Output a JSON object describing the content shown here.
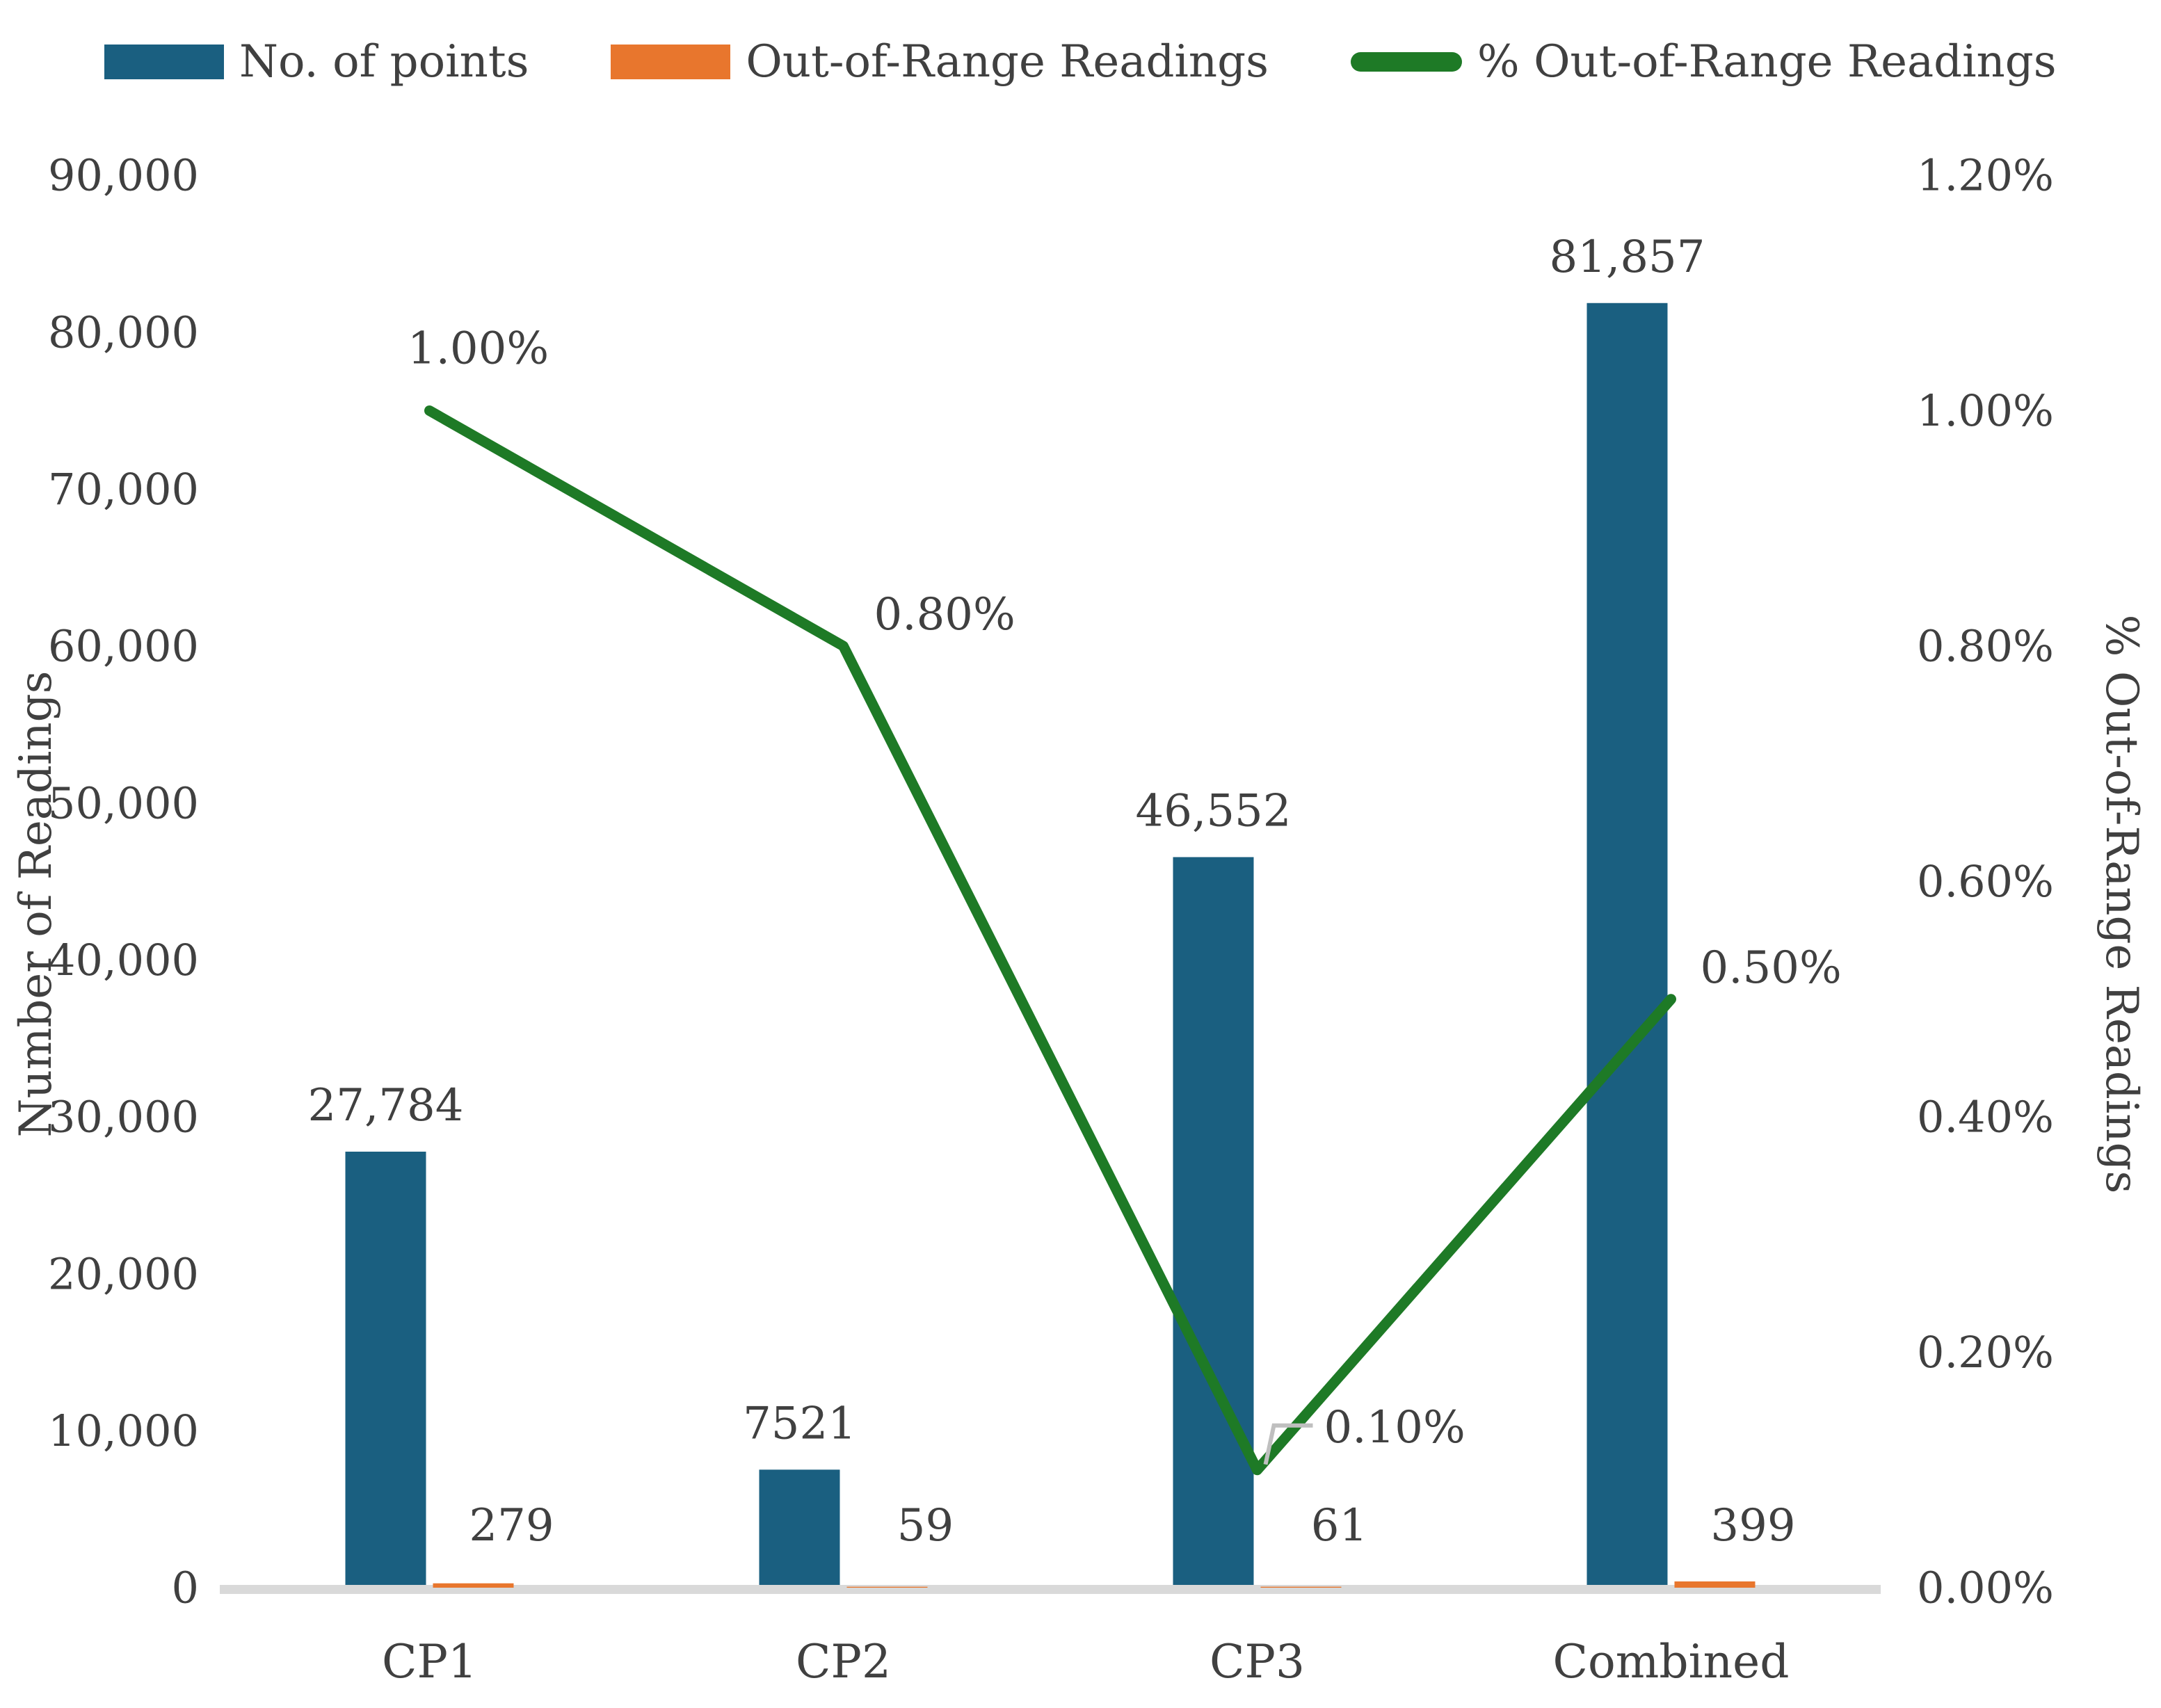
{
  "legend": {
    "items": [
      {
        "label": "No. of points",
        "swatch": "rect",
        "color": "#1A5F80"
      },
      {
        "label": "Out-of-Range Readings",
        "swatch": "rect",
        "color": "#E8762D"
      },
      {
        "label": "% Out-of-Range Readings",
        "swatch": "line",
        "color": "#1E7A26"
      }
    ]
  },
  "left_axis_title": "Number of Readings",
  "right_axis_title": "% Out-of-Range Readings",
  "chart_data": {
    "type": "combo-bar-line",
    "title": "",
    "categories": [
      "CP1",
      "CP2",
      "CP3",
      "Combined"
    ],
    "series": [
      {
        "name": "No. of points",
        "type": "bar",
        "axis": "left",
        "color": "#1A5F80",
        "values": [
          27784,
          7521,
          46552,
          81857
        ],
        "value_labels": [
          "27,784",
          "7521",
          "46,552",
          "81,857"
        ]
      },
      {
        "name": "Out-of-Range Readings",
        "type": "bar",
        "axis": "left",
        "color": "#E8762D",
        "values": [
          279,
          59,
          61,
          399
        ],
        "value_labels": [
          "279",
          "59",
          "61",
          "399"
        ]
      },
      {
        "name": "% Out-of-Range Readings",
        "type": "line",
        "axis": "right",
        "color": "#1E7A26",
        "values": [
          0.01,
          0.008,
          0.001,
          0.005
        ],
        "value_labels": [
          "1.00%",
          "0.80%",
          "0.10%",
          "0.50%"
        ]
      }
    ],
    "left_axis": {
      "label": "Number of Readings",
      "min": 0,
      "max": 90000,
      "step": 10000,
      "tick_labels": [
        "90,000",
        "80,000",
        "70,000",
        "60,000",
        "50,000",
        "40,000",
        "30,000",
        "20,000",
        "10,000",
        "0"
      ]
    },
    "right_axis": {
      "label": "% Out-of-Range Readings",
      "min": 0,
      "max": 0.012,
      "step": 0.002,
      "tick_labels": [
        "1.20%",
        "1.00%",
        "0.80%",
        "0.60%",
        "0.40%",
        "0.20%",
        "0.00%"
      ]
    },
    "grid": false,
    "legend_position": "top",
    "axis_line_color": "#D9D9D9",
    "leader_line_color": "#BFBFBF",
    "text_color": "#404040"
  }
}
